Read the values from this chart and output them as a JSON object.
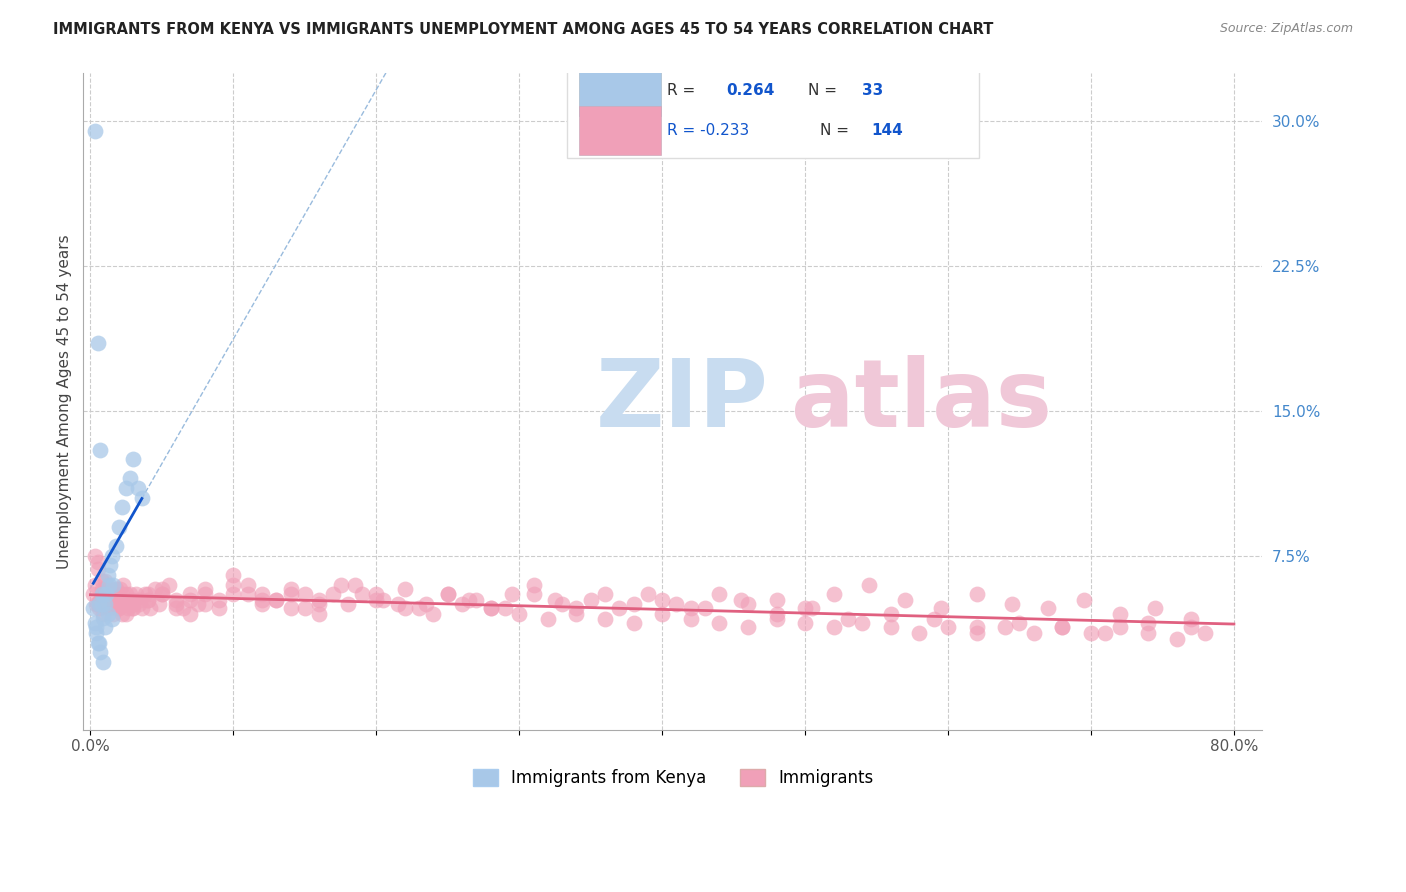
{
  "title": "IMMIGRANTS FROM KENYA VS IMMIGRANTS UNEMPLOYMENT AMONG AGES 45 TO 54 YEARS CORRELATION CHART",
  "source": "Source: ZipAtlas.com",
  "ylabel": "Unemployment Among Ages 45 to 54 years",
  "xlim": [
    -0.005,
    0.82
  ],
  "ylim": [
    -0.015,
    0.325
  ],
  "xticks": [
    0.0,
    0.1,
    0.2,
    0.3,
    0.4,
    0.5,
    0.6,
    0.7,
    0.8
  ],
  "xticklabels": [
    "0.0%",
    "",
    "",
    "",
    "",
    "",
    "",
    "",
    "80.0%"
  ],
  "yticks_right": [
    0.075,
    0.15,
    0.225,
    0.3
  ],
  "yticklabels_right": [
    "7.5%",
    "15.0%",
    "22.5%",
    "30.0%"
  ],
  "blue_color": "#A8C8E8",
  "pink_color": "#F0A0B8",
  "blue_line_color": "#1155CC",
  "pink_line_color": "#E06080",
  "blue_dash_color": "#99BBDD",
  "watermark_zip_color": "#C8DCF0",
  "watermark_atlas_color": "#F0C8D8",
  "blue_scatter_x": [
    0.003,
    0.005,
    0.007,
    0.008,
    0.009,
    0.01,
    0.011,
    0.012,
    0.013,
    0.014,
    0.015,
    0.016,
    0.018,
    0.02,
    0.022,
    0.025,
    0.028,
    0.03,
    0.033,
    0.036,
    0.003,
    0.004,
    0.005,
    0.006,
    0.008,
    0.01,
    0.012,
    0.015,
    0.002,
    0.004,
    0.006,
    0.007,
    0.009
  ],
  "blue_scatter_y": [
    0.295,
    0.185,
    0.13,
    0.05,
    0.043,
    0.038,
    0.055,
    0.065,
    0.06,
    0.07,
    0.075,
    0.06,
    0.08,
    0.09,
    0.1,
    0.11,
    0.115,
    0.125,
    0.11,
    0.105,
    0.04,
    0.035,
    0.03,
    0.05,
    0.055,
    0.05,
    0.045,
    0.042,
    0.048,
    0.038,
    0.03,
    0.025,
    0.02
  ],
  "pink_scatter_x": [
    0.002,
    0.003,
    0.004,
    0.005,
    0.006,
    0.007,
    0.008,
    0.009,
    0.01,
    0.011,
    0.012,
    0.013,
    0.014,
    0.015,
    0.016,
    0.017,
    0.018,
    0.019,
    0.02,
    0.021,
    0.022,
    0.023,
    0.024,
    0.025,
    0.026,
    0.027,
    0.028,
    0.029,
    0.03,
    0.032,
    0.034,
    0.036,
    0.038,
    0.04,
    0.042,
    0.045,
    0.048,
    0.05,
    0.055,
    0.06,
    0.065,
    0.07,
    0.075,
    0.08,
    0.09,
    0.1,
    0.11,
    0.12,
    0.13,
    0.14,
    0.15,
    0.16,
    0.175,
    0.19,
    0.205,
    0.22,
    0.235,
    0.25,
    0.265,
    0.28,
    0.295,
    0.31,
    0.325,
    0.34,
    0.36,
    0.38,
    0.4,
    0.42,
    0.44,
    0.46,
    0.48,
    0.5,
    0.52,
    0.545,
    0.57,
    0.595,
    0.62,
    0.645,
    0.67,
    0.695,
    0.72,
    0.745,
    0.77,
    0.003,
    0.005,
    0.008,
    0.01,
    0.012,
    0.015,
    0.018,
    0.022,
    0.025,
    0.03,
    0.035,
    0.04,
    0.05,
    0.06,
    0.07,
    0.08,
    0.09,
    0.1,
    0.11,
    0.12,
    0.13,
    0.14,
    0.15,
    0.16,
    0.17,
    0.185,
    0.2,
    0.215,
    0.23,
    0.25,
    0.27,
    0.29,
    0.31,
    0.33,
    0.35,
    0.37,
    0.39,
    0.41,
    0.43,
    0.455,
    0.48,
    0.505,
    0.53,
    0.56,
    0.59,
    0.62,
    0.65,
    0.68,
    0.71,
    0.74,
    0.77,
    0.005,
    0.01,
    0.015,
    0.02,
    0.025,
    0.03,
    0.04,
    0.05,
    0.06,
    0.07,
    0.08,
    0.1,
    0.12,
    0.14,
    0.16,
    0.18,
    0.2,
    0.22,
    0.24,
    0.26,
    0.28,
    0.3,
    0.32,
    0.34,
    0.36,
    0.38,
    0.4,
    0.42,
    0.44,
    0.46,
    0.48,
    0.5,
    0.52,
    0.54,
    0.56,
    0.58,
    0.6,
    0.62,
    0.64,
    0.66,
    0.68,
    0.7,
    0.72,
    0.74,
    0.76,
    0.78
  ],
  "pink_scatter_y": [
    0.055,
    0.06,
    0.05,
    0.072,
    0.048,
    0.052,
    0.058,
    0.045,
    0.062,
    0.05,
    0.055,
    0.048,
    0.052,
    0.058,
    0.045,
    0.05,
    0.055,
    0.048,
    0.052,
    0.058,
    0.045,
    0.06,
    0.052,
    0.055,
    0.048,
    0.05,
    0.055,
    0.048,
    0.052,
    0.055,
    0.05,
    0.048,
    0.055,
    0.052,
    0.048,
    0.058,
    0.05,
    0.055,
    0.06,
    0.052,
    0.048,
    0.055,
    0.05,
    0.058,
    0.052,
    0.065,
    0.06,
    0.055,
    0.052,
    0.058,
    0.055,
    0.05,
    0.06,
    0.055,
    0.052,
    0.058,
    0.05,
    0.055,
    0.052,
    0.048,
    0.055,
    0.06,
    0.052,
    0.048,
    0.055,
    0.05,
    0.052,
    0.048,
    0.055,
    0.05,
    0.052,
    0.048,
    0.055,
    0.06,
    0.052,
    0.048,
    0.055,
    0.05,
    0.048,
    0.052,
    0.045,
    0.048,
    0.042,
    0.075,
    0.068,
    0.062,
    0.058,
    0.055,
    0.052,
    0.058,
    0.055,
    0.05,
    0.048,
    0.052,
    0.055,
    0.058,
    0.05,
    0.052,
    0.055,
    0.048,
    0.06,
    0.055,
    0.05,
    0.052,
    0.055,
    0.048,
    0.052,
    0.055,
    0.06,
    0.055,
    0.05,
    0.048,
    0.055,
    0.052,
    0.048,
    0.055,
    0.05,
    0.052,
    0.048,
    0.055,
    0.05,
    0.048,
    0.052,
    0.045,
    0.048,
    0.042,
    0.045,
    0.042,
    0.038,
    0.04,
    0.038,
    0.035,
    0.04,
    0.038,
    0.05,
    0.055,
    0.052,
    0.048,
    0.045,
    0.05,
    0.052,
    0.055,
    0.048,
    0.045,
    0.05,
    0.055,
    0.052,
    0.048,
    0.045,
    0.05,
    0.052,
    0.048,
    0.045,
    0.05,
    0.048,
    0.045,
    0.042,
    0.045,
    0.042,
    0.04,
    0.045,
    0.042,
    0.04,
    0.038,
    0.042,
    0.04,
    0.038,
    0.04,
    0.038,
    0.035,
    0.038,
    0.035,
    0.038,
    0.035,
    0.038,
    0.035,
    0.038,
    0.035,
    0.032,
    0.035
  ]
}
